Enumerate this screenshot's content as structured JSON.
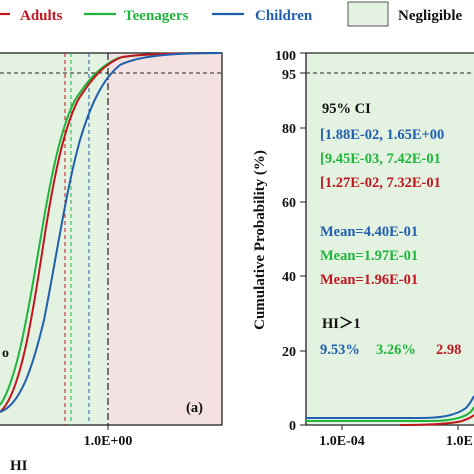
{
  "colors": {
    "adults": "#c0161e",
    "teenagers": "#1fb43c",
    "children": "#1f5fb0",
    "negligible_fill": "#e4f2e1",
    "risk_fill": "#f4e2e2",
    "text_dark": "#111111"
  },
  "legend": {
    "items": [
      "Adults",
      "Teenagers",
      "Children"
    ],
    "negligible_label": "Negligible"
  },
  "left_panel": {
    "xlabel": "HI",
    "panel_tag": "(a)",
    "threshold_label": "1.0E+00",
    "left_edge_mark": "o",
    "p95_line": 95
  },
  "right_panel": {
    "ylabel": "Cumulative Probability (%)",
    "yticks": [
      "0",
      "20",
      "40",
      "60",
      "80",
      "95",
      "100"
    ],
    "xticks": [
      "1.0E-04",
      "1.0E"
    ],
    "ci_title": "95% CI",
    "ci_children": "[1.88E-02, 1.65E+00",
    "ci_teenagers": "[9.45E-03, 7.42E-01",
    "ci_adults": "[1.27E-02, 7.32E-01",
    "mean_children": "Mean=4.40E-01",
    "mean_teenagers": "Mean=1.97E-01",
    "mean_adults": "Mean=1.96E-01",
    "hi_title": "HI＞1",
    "hi_children": "9.53%",
    "hi_teenagers": "3.26%",
    "hi_adults": "2.98"
  },
  "chart_data": [
    {
      "type": "line",
      "description_source": "left panel: cumulative probability of HI (log x-axis)",
      "xlabel": "HI",
      "ylabel": "",
      "x_scale": "log",
      "ylim": [
        0,
        100
      ],
      "series": [
        {
          "name": "Adults",
          "x": [
            0.01,
            0.05,
            0.1,
            0.2,
            0.3,
            0.5,
            0.7,
            1.0,
            1.5,
            2.0,
            3.0,
            5.0
          ],
          "y": [
            4,
            20,
            38,
            62,
            74,
            87,
            93,
            97,
            99,
            99.7,
            100,
            100
          ]
        },
        {
          "name": "Teenagers",
          "x": [
            0.01,
            0.05,
            0.1,
            0.2,
            0.3,
            0.5,
            0.7,
            1.0,
            1.5,
            2.0,
            3.0,
            5.0
          ],
          "y": [
            8,
            26,
            43,
            64,
            76,
            88,
            94,
            97,
            99,
            99.7,
            100,
            100
          ]
        },
        {
          "name": "Children",
          "x": [
            0.01,
            0.05,
            0.1,
            0.2,
            0.3,
            0.5,
            0.7,
            1.0,
            1.5,
            2.0,
            3.0,
            5.0
          ],
          "y": [
            2,
            6,
            14,
            30,
            45,
            64,
            78,
            90,
            96,
            98.5,
            99.7,
            100
          ]
        }
      ],
      "reference_lines": {
        "y": 95,
        "x_threshold": 1.0
      }
    },
    {
      "type": "line",
      "description_source": "right panel: cumulative probability (%)",
      "xlabel": "",
      "ylabel": "Cumulative Probability (%)",
      "x_scale": "log",
      "ylim": [
        0,
        100
      ],
      "yticks": [
        0,
        20,
        40,
        60,
        80,
        95,
        100
      ],
      "series": [
        {
          "name": "Children",
          "x": [
            0.0001,
            0.001,
            0.003,
            0.01,
            0.05
          ],
          "y": [
            1.5,
            1.5,
            2,
            4,
            9
          ]
        },
        {
          "name": "Teenagers",
          "x": [
            0.0001,
            0.001,
            0.003,
            0.01,
            0.05
          ],
          "y": [
            1,
            1,
            1.5,
            3,
            7
          ]
        },
        {
          "name": "Adults",
          "x": [
            0.0001,
            0.001,
            0.003,
            0.01,
            0.05
          ],
          "y": [
            0,
            0,
            0.5,
            2,
            6
          ]
        }
      ]
    }
  ]
}
